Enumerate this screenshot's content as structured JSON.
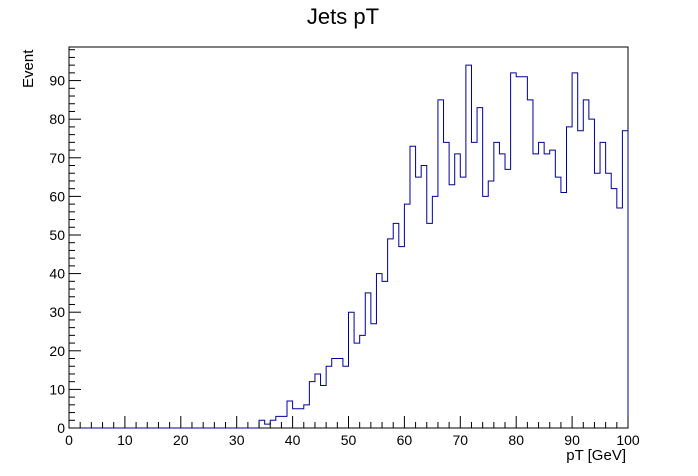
{
  "chart_data": {
    "type": "histogram",
    "title": "Jets pT",
    "xlabel": "pT [GeV]",
    "ylabel": "Event",
    "xlim": [
      0,
      100
    ],
    "ylim": [
      0,
      98.7
    ],
    "x_ticks": [
      0,
      10,
      20,
      30,
      40,
      50,
      60,
      70,
      80,
      90,
      100
    ],
    "y_ticks": [
      0,
      10,
      20,
      30,
      40,
      50,
      60,
      70,
      80,
      90
    ],
    "bin_width": 1,
    "line_color": "#000099",
    "grid": false,
    "values": [
      0,
      0,
      0,
      0,
      0,
      0,
      0,
      0,
      0,
      0,
      0,
      0,
      0,
      0,
      0,
      0,
      0,
      0,
      0,
      0,
      0,
      0,
      0,
      0,
      0,
      0,
      0,
      0,
      0,
      0,
      0,
      0,
      0,
      0,
      2,
      1,
      2,
      3,
      3,
      7,
      5,
      5,
      6,
      12,
      14,
      11,
      16,
      18,
      18,
      16,
      30,
      22,
      24,
      35,
      27,
      40,
      38,
      49,
      53,
      47,
      58,
      73,
      65,
      68,
      53,
      60,
      85,
      74,
      63,
      71,
      65,
      94,
      74,
      83,
      60,
      64,
      74,
      71,
      67,
      92,
      91,
      91,
      85,
      71,
      74,
      71,
      72,
      65,
      61,
      78,
      92,
      77,
      85,
      80,
      66,
      74,
      66,
      62,
      57,
      77
    ]
  }
}
